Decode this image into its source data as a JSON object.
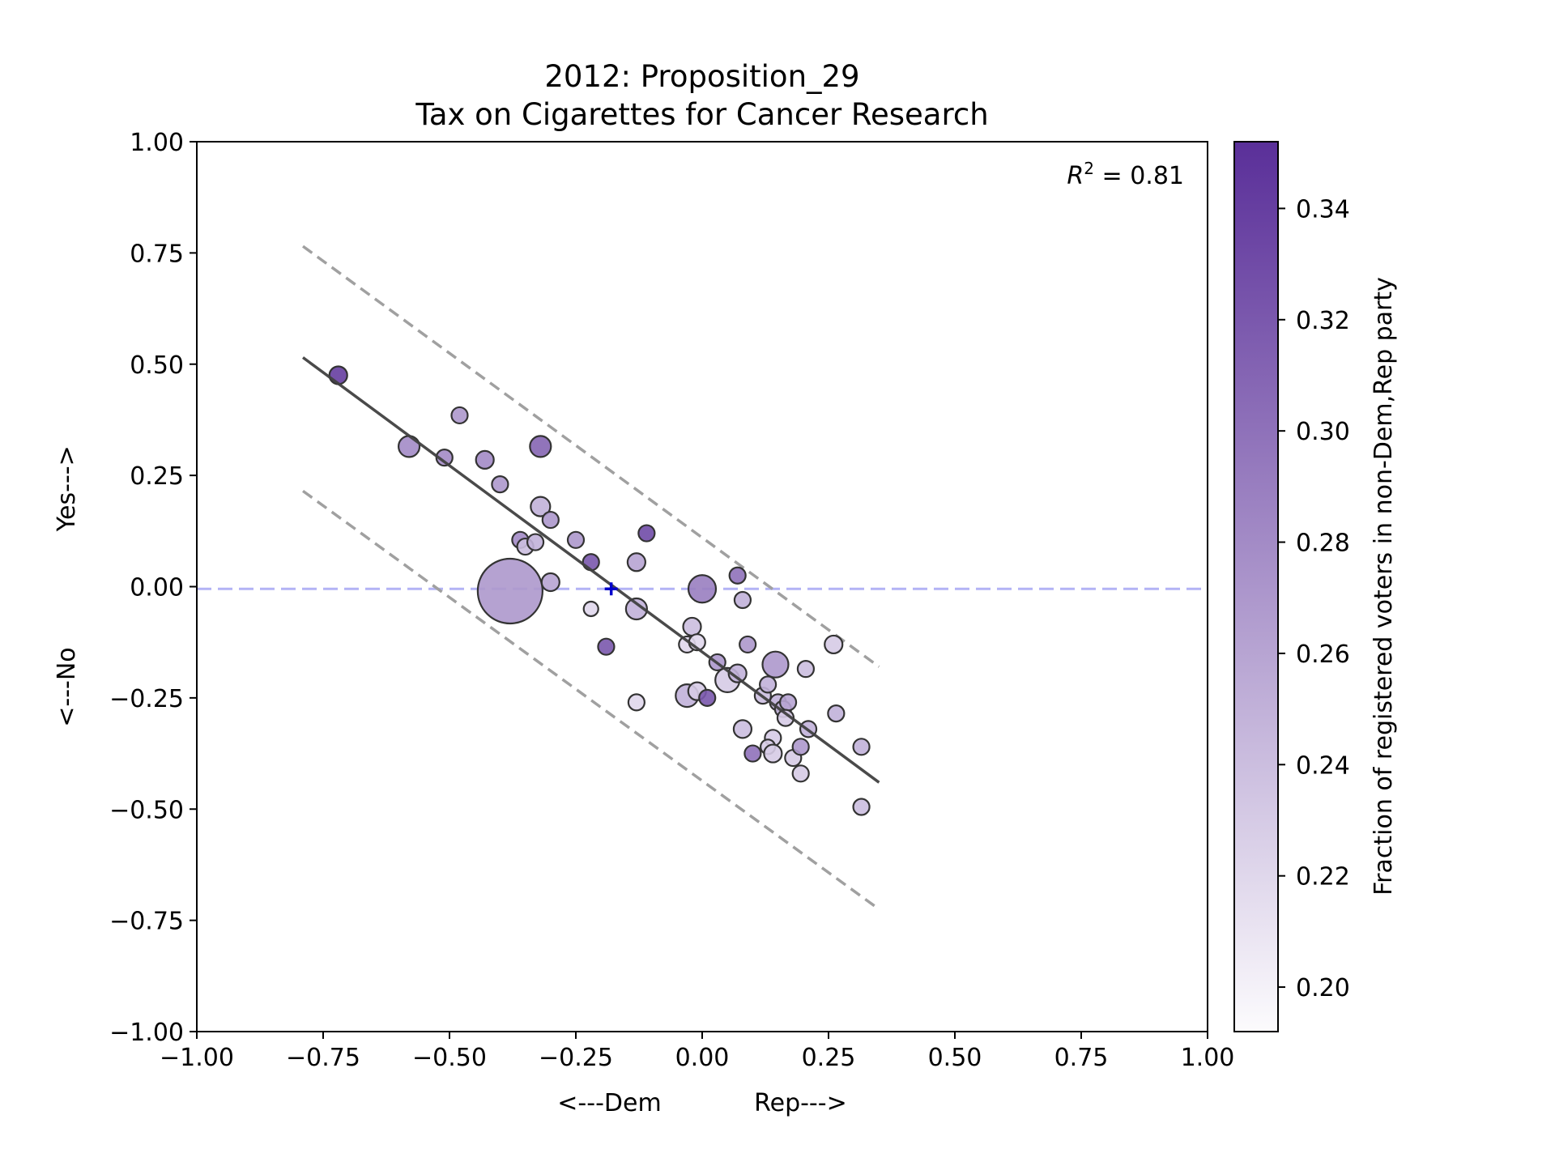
{
  "chart_data": {
    "type": "scatter",
    "title": "2012: Proposition_29",
    "subtitle": "Tax on Cigarettes for Cancer Research",
    "xlabel": "<---Dem            Rep--->",
    "ylabel": "<---No               Yes--->",
    "xlim": [
      -1.0,
      1.0
    ],
    "ylim": [
      -1.0,
      1.0
    ],
    "x_ticks": [
      -1.0,
      -0.75,
      -0.5,
      -0.25,
      0.0,
      0.25,
      0.5,
      0.75,
      1.0
    ],
    "y_ticks": [
      -1.0,
      -0.75,
      -0.5,
      -0.25,
      0.0,
      0.25,
      0.5,
      0.75,
      1.0
    ],
    "x_tick_labels": [
      "−1.00",
      "−0.75",
      "−0.50",
      "−0.25",
      "0.00",
      "0.25",
      "0.50",
      "0.75",
      "1.00"
    ],
    "y_tick_labels": [
      "−1.00",
      "−0.75",
      "−0.50",
      "−0.25",
      "0.00",
      "0.25",
      "0.50",
      "0.75",
      "1.00"
    ],
    "annotation": {
      "r2_prefix": "R",
      "r2_exponent": "2",
      "r2_suffix": " = 0.81"
    },
    "colorbar": {
      "label": "Fraction of registered voters in non-Dem,Rep party",
      "range": [
        0.192,
        0.352
      ],
      "ticks": [
        0.2,
        0.22,
        0.24,
        0.26,
        0.28,
        0.3,
        0.32,
        0.34
      ],
      "tick_labels": [
        "0.20",
        "0.22",
        "0.24",
        "0.26",
        "0.28",
        "0.30",
        "0.32",
        "0.34"
      ],
      "color_low": "#fcfbfd",
      "color_high": "#5a2f99"
    },
    "fit_line": {
      "x": [
        -0.79,
        0.35
      ],
      "y": [
        0.515,
        -0.44
      ],
      "color": "#404040"
    },
    "upper_band": {
      "x": [
        -0.79,
        0.35
      ],
      "y": [
        0.765,
        -0.18
      ],
      "color": "#a0a0a0"
    },
    "lower_band": {
      "x": [
        -0.79,
        0.35
      ],
      "y": [
        0.215,
        -0.725
      ],
      "color": "#a0a0a0"
    },
    "reference_line": {
      "y": -0.005,
      "color": "#b3b3f5"
    },
    "center_marker": {
      "x": -0.18,
      "y": -0.005,
      "color": "#0000cc"
    },
    "points": [
      {
        "x": -0.72,
        "y": 0.475,
        "size": 11,
        "value": 0.34
      },
      {
        "x": -0.58,
        "y": 0.315,
        "size": 13,
        "value": 0.28
      },
      {
        "x": -0.51,
        "y": 0.29,
        "size": 10,
        "value": 0.28
      },
      {
        "x": -0.48,
        "y": 0.385,
        "size": 10,
        "value": 0.27
      },
      {
        "x": -0.43,
        "y": 0.285,
        "size": 11,
        "value": 0.28
      },
      {
        "x": -0.4,
        "y": 0.23,
        "size": 10,
        "value": 0.27
      },
      {
        "x": -0.32,
        "y": 0.315,
        "size": 13,
        "value": 0.31
      },
      {
        "x": -0.32,
        "y": 0.18,
        "size": 12,
        "value": 0.25
      },
      {
        "x": -0.3,
        "y": 0.15,
        "size": 10,
        "value": 0.27
      },
      {
        "x": -0.36,
        "y": 0.105,
        "size": 10,
        "value": 0.28
      },
      {
        "x": -0.35,
        "y": 0.09,
        "size": 10,
        "value": 0.24
      },
      {
        "x": -0.33,
        "y": 0.1,
        "size": 10,
        "value": 0.25
      },
      {
        "x": -0.25,
        "y": 0.105,
        "size": 10,
        "value": 0.27
      },
      {
        "x": -0.22,
        "y": 0.055,
        "size": 10,
        "value": 0.32
      },
      {
        "x": -0.38,
        "y": -0.01,
        "size": 40,
        "value": 0.27
      },
      {
        "x": -0.3,
        "y": 0.01,
        "size": 11,
        "value": 0.26
      },
      {
        "x": -0.22,
        "y": -0.05,
        "size": 9,
        "value": 0.22
      },
      {
        "x": -0.19,
        "y": -0.135,
        "size": 10,
        "value": 0.32
      },
      {
        "x": -0.13,
        "y": 0.055,
        "size": 11,
        "value": 0.26
      },
      {
        "x": -0.11,
        "y": 0.12,
        "size": 10,
        "value": 0.33
      },
      {
        "x": -0.13,
        "y": -0.05,
        "size": 13,
        "value": 0.25
      },
      {
        "x": -0.13,
        "y": -0.26,
        "size": 10,
        "value": 0.22
      },
      {
        "x": -0.02,
        "y": -0.09,
        "size": 11,
        "value": 0.24
      },
      {
        "x": -0.03,
        "y": -0.13,
        "size": 10,
        "value": 0.22
      },
      {
        "x": -0.01,
        "y": -0.125,
        "size": 10,
        "value": 0.22
      },
      {
        "x": 0.0,
        "y": -0.005,
        "size": 17,
        "value": 0.29
      },
      {
        "x": -0.03,
        "y": -0.245,
        "size": 14,
        "value": 0.25
      },
      {
        "x": -0.01,
        "y": -0.235,
        "size": 11,
        "value": 0.23
      },
      {
        "x": 0.01,
        "y": -0.25,
        "size": 10,
        "value": 0.32
      },
      {
        "x": 0.03,
        "y": -0.17,
        "size": 10,
        "value": 0.27
      },
      {
        "x": 0.05,
        "y": -0.21,
        "size": 15,
        "value": 0.23
      },
      {
        "x": 0.07,
        "y": -0.195,
        "size": 11,
        "value": 0.25
      },
      {
        "x": 0.07,
        "y": 0.025,
        "size": 10,
        "value": 0.3
      },
      {
        "x": 0.08,
        "y": -0.03,
        "size": 10,
        "value": 0.25
      },
      {
        "x": 0.09,
        "y": -0.13,
        "size": 10,
        "value": 0.27
      },
      {
        "x": 0.08,
        "y": -0.32,
        "size": 11,
        "value": 0.24
      },
      {
        "x": 0.1,
        "y": -0.375,
        "size": 10,
        "value": 0.3
      },
      {
        "x": 0.12,
        "y": -0.245,
        "size": 10,
        "value": 0.24
      },
      {
        "x": 0.13,
        "y": -0.22,
        "size": 10,
        "value": 0.25
      },
      {
        "x": 0.145,
        "y": -0.175,
        "size": 16,
        "value": 0.27
      },
      {
        "x": 0.14,
        "y": -0.34,
        "size": 10,
        "value": 0.23
      },
      {
        "x": 0.13,
        "y": -0.36,
        "size": 9,
        "value": 0.23
      },
      {
        "x": 0.14,
        "y": -0.375,
        "size": 11,
        "value": 0.23
      },
      {
        "x": 0.15,
        "y": -0.26,
        "size": 10,
        "value": 0.25
      },
      {
        "x": 0.16,
        "y": -0.275,
        "size": 10,
        "value": 0.25
      },
      {
        "x": 0.17,
        "y": -0.26,
        "size": 10,
        "value": 0.26
      },
      {
        "x": 0.165,
        "y": -0.295,
        "size": 10,
        "value": 0.23
      },
      {
        "x": 0.18,
        "y": -0.385,
        "size": 10,
        "value": 0.23
      },
      {
        "x": 0.195,
        "y": -0.36,
        "size": 10,
        "value": 0.27
      },
      {
        "x": 0.205,
        "y": -0.185,
        "size": 10,
        "value": 0.24
      },
      {
        "x": 0.21,
        "y": -0.32,
        "size": 10,
        "value": 0.25
      },
      {
        "x": 0.195,
        "y": -0.42,
        "size": 10,
        "value": 0.23
      },
      {
        "x": 0.26,
        "y": -0.13,
        "size": 11,
        "value": 0.23
      },
      {
        "x": 0.265,
        "y": -0.285,
        "size": 10,
        "value": 0.25
      },
      {
        "x": 0.315,
        "y": -0.36,
        "size": 10,
        "value": 0.25
      },
      {
        "x": 0.315,
        "y": -0.495,
        "size": 10,
        "value": 0.24
      }
    ]
  }
}
